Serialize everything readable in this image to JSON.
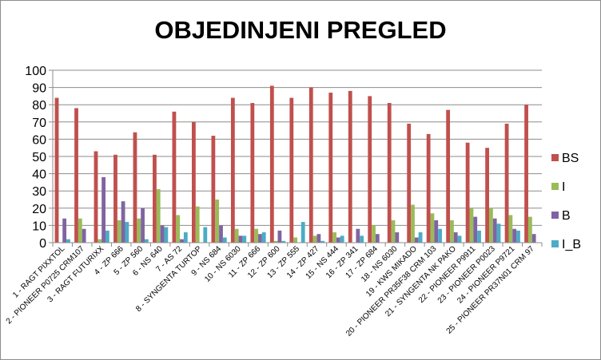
{
  "chart_data": {
    "type": "bar",
    "title": "OBJEDINJENI PREGLED",
    "xlabel": "",
    "ylabel": "",
    "ylim": [
      0,
      100
    ],
    "yticks": [
      0,
      10,
      20,
      30,
      40,
      50,
      60,
      70,
      80,
      90,
      100
    ],
    "grid": true,
    "legend_position": "right",
    "categories": [
      "1 - RAGT PIXXTOL",
      "2 - PIONEER P0725 CRM107",
      "3 - RAGT FUTURIXX",
      "4 - ZP 666",
      "5 - ZP 560",
      "6 - NS 640",
      "7 - AS 72",
      "8 - SYNGENTA TURTOP",
      "9 - NS 684",
      "10 - NS 6030",
      "11 - ZP 666",
      "12 - ZP 600",
      "13 - ZP 555",
      "14 - ZP 427",
      "15 - NS 444",
      "16 - ZP 341",
      "17 - ZP 684",
      "18 - NS 6030",
      "19 - KWS MIKADO",
      "20 - PIONEER PR35F38 CRM 103",
      "21 - SYNGENTA NK PAKO",
      "22 - PIONEER P9911",
      "23 - PIONEER P0023",
      "24 - PIONEER P9721",
      "25 - PIONEER PR37N01 CRM 97"
    ],
    "series": [
      {
        "name": "BS",
        "color": "#c0504d",
        "values": [
          84,
          78,
          53,
          51,
          64,
          51,
          76,
          70,
          62,
          84,
          81,
          91,
          84,
          90,
          87,
          88,
          85,
          81,
          69,
          63,
          77,
          58,
          55,
          69,
          80
        ]
      },
      {
        "name": "I",
        "color": "#9bbb59",
        "values": [
          0,
          14,
          2,
          13,
          14,
          31,
          16,
          21,
          25,
          8,
          8,
          1,
          3,
          4,
          6,
          0,
          10,
          13,
          22,
          17,
          13,
          20,
          20,
          16,
          15
        ]
      },
      {
        "name": "B",
        "color": "#8064a2",
        "values": [
          14,
          8,
          38,
          24,
          20,
          10,
          2,
          0,
          10,
          4,
          5,
          7,
          0,
          5,
          3,
          8,
          5,
          6,
          3,
          13,
          6,
          15,
          14,
          8,
          5
        ]
      },
      {
        "name": "I_B",
        "color": "#4bacc6",
        "values": [
          2,
          0,
          7,
          12,
          2,
          9,
          6,
          9,
          3,
          4,
          6,
          1,
          12,
          1,
          4,
          4,
          0,
          0,
          6,
          8,
          4,
          7,
          11,
          7,
          0
        ]
      }
    ]
  }
}
